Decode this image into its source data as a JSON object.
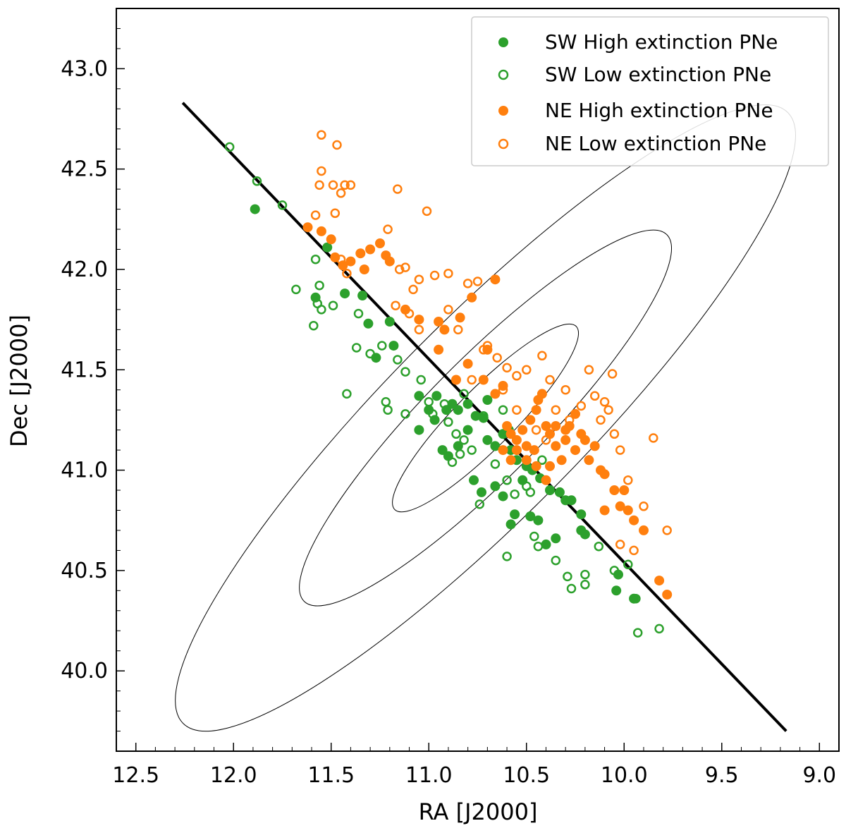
{
  "chart_data": {
    "type": "scatter",
    "xlabel": "RA [J2000]",
    "ylabel": "Dec [J2000]",
    "xlim": [
      12.6,
      8.9
    ],
    "ylim": [
      39.6,
      43.3
    ],
    "x_inverted": true,
    "x_ticks": [
      "12.5",
      "12.0",
      "11.5",
      "11.0",
      "10.5",
      "10.0",
      "9.5",
      "9.0"
    ],
    "y_ticks": [
      "40.0",
      "40.5",
      "41.0",
      "41.5",
      "42.0",
      "42.5",
      "43.0"
    ],
    "grid": false,
    "legend_position": "top-right",
    "colors": {
      "SW": "#2ca02c",
      "NE": "#ff7f0e",
      "line": "#000000",
      "ellipse": "#000000"
    },
    "major_axis": {
      "x": [
        12.26,
        9.17
      ],
      "y": [
        42.83,
        39.7
      ]
    },
    "ellipses": [
      {
        "cx": 10.71,
        "cy": 41.26,
        "semi_major_deg": 2.2,
        "semi_minor_deg": 0.5,
        "pa_deg": 45.3
      },
      {
        "cx": 10.71,
        "cy": 41.26,
        "semi_major_deg": 1.32,
        "semi_minor_deg": 0.3,
        "pa_deg": 45.3
      },
      {
        "cx": 10.71,
        "cy": 41.26,
        "semi_major_deg": 0.66,
        "semi_minor_deg": 0.15,
        "pa_deg": 45.3
      }
    ],
    "series": [
      {
        "name": "SW High extinction PNe",
        "marker": "filled",
        "color": "#2ca02c",
        "points": [
          [
            11.89,
            42.3
          ],
          [
            11.52,
            42.11
          ],
          [
            11.58,
            41.86
          ],
          [
            11.43,
            41.88
          ],
          [
            11.34,
            41.87
          ],
          [
            11.31,
            41.73
          ],
          [
            11.27,
            41.56
          ],
          [
            11.2,
            41.74
          ],
          [
            11.18,
            41.62
          ],
          [
            11.05,
            41.37
          ],
          [
            10.96,
            41.37
          ],
          [
            10.91,
            41.3
          ],
          [
            10.88,
            41.33
          ],
          [
            10.85,
            41.3
          ],
          [
            10.8,
            41.33
          ],
          [
            10.76,
            41.27
          ],
          [
            10.72,
            41.26
          ],
          [
            10.7,
            41.15
          ],
          [
            10.66,
            41.12
          ],
          [
            10.62,
            41.18
          ],
          [
            10.58,
            41.1
          ],
          [
            10.55,
            41.05
          ],
          [
            10.5,
            41.02
          ],
          [
            10.47,
            41.0
          ],
          [
            10.43,
            40.96
          ],
          [
            10.38,
            40.9
          ],
          [
            10.33,
            40.89
          ],
          [
            10.27,
            40.85
          ],
          [
            10.22,
            40.78
          ],
          [
            10.52,
            40.95
          ],
          [
            10.56,
            40.78
          ],
          [
            10.44,
            40.75
          ],
          [
            10.35,
            40.66
          ],
          [
            10.22,
            40.7
          ],
          [
            10.2,
            40.68
          ],
          [
            10.4,
            40.63
          ],
          [
            10.58,
            40.73
          ],
          [
            10.73,
            40.89
          ],
          [
            10.77,
            40.95
          ],
          [
            10.85,
            41.12
          ],
          [
            10.9,
            41.07
          ],
          [
            10.93,
            41.1
          ],
          [
            10.97,
            41.25
          ],
          [
            11.0,
            41.3
          ],
          [
            11.05,
            41.2
          ],
          [
            10.04,
            40.4
          ],
          [
            10.03,
            40.48
          ],
          [
            9.95,
            40.36
          ],
          [
            10.66,
            40.92
          ],
          [
            10.62,
            40.87
          ],
          [
            10.59,
            41.2
          ],
          [
            10.7,
            41.35
          ],
          [
            10.8,
            41.2
          ],
          [
            10.3,
            40.85
          ],
          [
            10.48,
            40.77
          ]
        ]
      },
      {
        "name": "SW Low extinction PNe",
        "marker": "open",
        "color": "#2ca02c",
        "points": [
          [
            12.02,
            42.61
          ],
          [
            11.88,
            42.44
          ],
          [
            11.75,
            42.32
          ],
          [
            11.58,
            42.05
          ],
          [
            11.56,
            41.92
          ],
          [
            11.57,
            41.83
          ],
          [
            11.59,
            41.72
          ],
          [
            11.68,
            41.9
          ],
          [
            11.36,
            41.78
          ],
          [
            11.37,
            41.61
          ],
          [
            11.3,
            41.58
          ],
          [
            11.24,
            41.62
          ],
          [
            11.16,
            41.55
          ],
          [
            11.22,
            41.34
          ],
          [
            11.21,
            41.3
          ],
          [
            11.12,
            41.28
          ],
          [
            11.12,
            41.49
          ],
          [
            11.04,
            41.45
          ],
          [
            11.0,
            41.34
          ],
          [
            10.98,
            41.28
          ],
          [
            10.92,
            41.33
          ],
          [
            10.9,
            41.24
          ],
          [
            10.86,
            41.18
          ],
          [
            10.84,
            41.08
          ],
          [
            10.82,
            41.15
          ],
          [
            10.78,
            41.1
          ],
          [
            10.88,
            41.04
          ],
          [
            10.72,
            41.27
          ],
          [
            10.66,
            41.03
          ],
          [
            10.74,
            40.83
          ],
          [
            10.6,
            40.95
          ],
          [
            10.56,
            40.88
          ],
          [
            10.48,
            40.89
          ],
          [
            10.46,
            40.67
          ],
          [
            10.44,
            40.62
          ],
          [
            10.35,
            40.55
          ],
          [
            10.27,
            40.41
          ],
          [
            10.29,
            40.47
          ],
          [
            10.2,
            40.48
          ],
          [
            10.2,
            40.43
          ],
          [
            10.13,
            40.62
          ],
          [
            10.05,
            40.5
          ],
          [
            9.98,
            40.53
          ],
          [
            9.94,
            40.36
          ],
          [
            9.93,
            40.19
          ],
          [
            9.82,
            40.21
          ],
          [
            10.6,
            40.57
          ],
          [
            11.42,
            41.38
          ],
          [
            11.55,
            41.8
          ],
          [
            11.49,
            41.82
          ],
          [
            10.5,
            40.92
          ],
          [
            10.42,
            41.05
          ],
          [
            10.62,
            41.3
          ],
          [
            10.82,
            41.38
          ]
        ]
      },
      {
        "name": "NE High extinction PNe",
        "marker": "filled",
        "color": "#ff7f0e",
        "points": [
          [
            11.62,
            42.21
          ],
          [
            11.55,
            42.19
          ],
          [
            11.5,
            42.15
          ],
          [
            11.48,
            42.06
          ],
          [
            11.44,
            42.02
          ],
          [
            11.35,
            42.08
          ],
          [
            11.3,
            42.1
          ],
          [
            11.25,
            42.13
          ],
          [
            11.22,
            42.07
          ],
          [
            11.2,
            42.04
          ],
          [
            11.33,
            42.0
          ],
          [
            11.4,
            42.04
          ],
          [
            11.12,
            41.8
          ],
          [
            11.05,
            41.75
          ],
          [
            10.95,
            41.74
          ],
          [
            10.92,
            41.7
          ],
          [
            10.84,
            41.76
          ],
          [
            10.78,
            41.86
          ],
          [
            10.66,
            41.95
          ],
          [
            10.86,
            41.45
          ],
          [
            10.8,
            41.53
          ],
          [
            10.72,
            41.45
          ],
          [
            10.66,
            41.38
          ],
          [
            10.62,
            41.42
          ],
          [
            10.6,
            41.22
          ],
          [
            10.58,
            41.18
          ],
          [
            10.55,
            41.15
          ],
          [
            10.52,
            41.2
          ],
          [
            10.5,
            41.12
          ],
          [
            10.48,
            41.25
          ],
          [
            10.46,
            41.1
          ],
          [
            10.44,
            41.35
          ],
          [
            10.42,
            41.38
          ],
          [
            10.4,
            41.22
          ],
          [
            10.38,
            41.18
          ],
          [
            10.35,
            41.12
          ],
          [
            10.32,
            41.05
          ],
          [
            10.3,
            41.15
          ],
          [
            10.28,
            41.22
          ],
          [
            10.25,
            41.1
          ],
          [
            10.22,
            41.18
          ],
          [
            10.18,
            41.05
          ],
          [
            10.15,
            41.12
          ],
          [
            10.12,
            41.0
          ],
          [
            10.1,
            40.98
          ],
          [
            10.05,
            40.9
          ],
          [
            10.02,
            40.82
          ],
          [
            9.98,
            40.8
          ],
          [
            9.95,
            40.75
          ],
          [
            9.9,
            40.7
          ],
          [
            10.4,
            40.95
          ],
          [
            10.45,
            41.02
          ],
          [
            10.55,
            41.1
          ],
          [
            10.5,
            41.05
          ],
          [
            10.35,
            41.22
          ],
          [
            10.45,
            41.3
          ],
          [
            10.58,
            41.05
          ],
          [
            10.62,
            41.1
          ],
          [
            9.82,
            40.45
          ],
          [
            9.78,
            40.38
          ],
          [
            10.1,
            40.8
          ],
          [
            10.0,
            40.9
          ],
          [
            10.38,
            41.02
          ],
          [
            10.3,
            41.2
          ],
          [
            10.25,
            41.28
          ],
          [
            10.2,
            41.15
          ],
          [
            10.7,
            41.6
          ],
          [
            10.95,
            41.6
          ]
        ]
      },
      {
        "name": "NE Low extinction PNe",
        "marker": "open",
        "color": "#ff7f0e",
        "points": [
          [
            11.55,
            42.67
          ],
          [
            11.47,
            42.62
          ],
          [
            11.55,
            42.49
          ],
          [
            11.56,
            42.42
          ],
          [
            11.49,
            42.42
          ],
          [
            11.45,
            42.38
          ],
          [
            11.43,
            42.42
          ],
          [
            11.4,
            42.42
          ],
          [
            11.48,
            42.28
          ],
          [
            11.16,
            42.4
          ],
          [
            11.01,
            42.29
          ],
          [
            11.58,
            42.27
          ],
          [
            11.45,
            42.05
          ],
          [
            11.42,
            41.98
          ],
          [
            11.21,
            42.2
          ],
          [
            11.15,
            42.0
          ],
          [
            11.12,
            42.01
          ],
          [
            11.05,
            41.95
          ],
          [
            10.97,
            41.97
          ],
          [
            10.9,
            41.98
          ],
          [
            11.08,
            41.9
          ],
          [
            10.8,
            41.93
          ],
          [
            10.75,
            41.94
          ],
          [
            11.17,
            41.82
          ],
          [
            11.1,
            41.78
          ],
          [
            10.9,
            41.8
          ],
          [
            10.85,
            41.7
          ],
          [
            10.72,
            41.6
          ],
          [
            10.7,
            41.62
          ],
          [
            10.65,
            41.56
          ],
          [
            10.6,
            41.51
          ],
          [
            10.55,
            41.47
          ],
          [
            10.5,
            41.5
          ],
          [
            10.42,
            41.57
          ],
          [
            10.38,
            41.45
          ],
          [
            10.3,
            41.4
          ],
          [
            10.22,
            41.32
          ],
          [
            10.18,
            41.5
          ],
          [
            10.15,
            41.37
          ],
          [
            10.1,
            41.34
          ],
          [
            10.08,
            41.3
          ],
          [
            10.06,
            41.48
          ],
          [
            10.12,
            41.25
          ],
          [
            10.05,
            41.18
          ],
          [
            10.02,
            41.1
          ],
          [
            9.85,
            41.16
          ],
          [
            9.98,
            40.95
          ],
          [
            9.9,
            40.82
          ],
          [
            9.78,
            40.7
          ],
          [
            9.95,
            40.6
          ],
          [
            10.02,
            40.63
          ],
          [
            10.35,
            41.3
          ],
          [
            10.45,
            41.2
          ],
          [
            10.62,
            41.4
          ],
          [
            10.78,
            41.45
          ],
          [
            10.55,
            41.3
          ],
          [
            10.28,
            41.25
          ],
          [
            10.4,
            41.15
          ],
          [
            11.05,
            41.7
          ]
        ]
      }
    ]
  },
  "legend": {
    "items": [
      {
        "label": "SW High extinction PNe"
      },
      {
        "label": "SW Low extinction PNe"
      },
      {
        "label": "NE High extinction PNe"
      },
      {
        "label": "NE Low extinction PNe"
      }
    ]
  }
}
